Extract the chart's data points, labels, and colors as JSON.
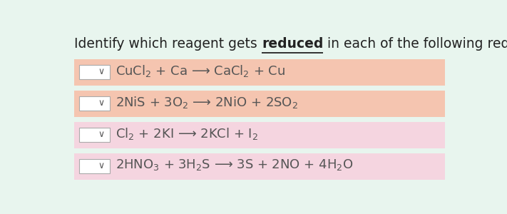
{
  "title_plain": "Identify which reagent gets ",
  "title_bold_underline": "reduced",
  "title_suffix": " in each of the following redox reactions.",
  "title_fontsize": 13.5,
  "bg_color": "#e8f5ee",
  "row_colors": [
    "#f5c5b0",
    "#f5c5b0",
    "#f5d5e0",
    "#f5d5e0"
  ],
  "text_color": "#555555",
  "text_fontsize": 13,
  "rows": [
    {
      "reaction": "CuCl$_2$ + Ca ⟶ CaCl$_2$ + Cu"
    },
    {
      "reaction": "2NiS + 3O$_2$ ⟶ 2NiO + 2SO$_2$"
    },
    {
      "reaction": "Cl$_2$ + 2KI ⟶ 2KCl + I$_2$"
    },
    {
      "reaction": "2HNO$_3$ + 3H$_2$S ⟶ 3S + 2NO + 4H$_2$O"
    }
  ],
  "box_color": "#ffffff",
  "box_edge_color": "#aaaaaa",
  "dropdown_text": "∨",
  "dropdown_fontsize": 9,
  "title_color": "#222222"
}
